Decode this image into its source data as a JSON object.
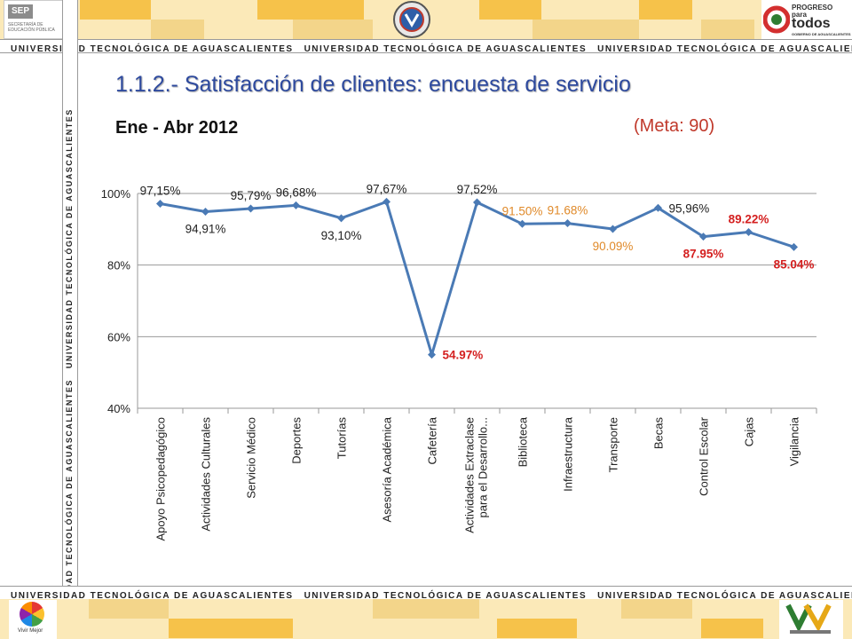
{
  "header": {
    "banner_text": "UNIVERSIDAD TECNOLÓGICA DE AGUASCALIENTES",
    "sep_logo_text": "SEP",
    "sep_logo_subtext": "SECRETARÍA DE EDUCACIÓN PÚBLICA",
    "right_logo_line1": "PROGRESO",
    "right_logo_line2": "para",
    "right_logo_line3": "todos",
    "right_logo_caption": "GOBIERNO DE AGUASCALIENTES"
  },
  "footer": {
    "banner_text": "UNIVERSIDAD TECNOLÓGICA DE AGUASCALIENTES",
    "left_logo_text": "Vivir Mejor"
  },
  "side_text": "UNIVERSIDAD TECNOLÓGICA DE AGUASCALIENTES",
  "slide": {
    "title": "1.1.2.- Satisfacción de clientes: encuesta de servicio",
    "period": "Ene - Abr 2012",
    "goal": "(Meta: 90)"
  },
  "colors": {
    "line": "#4a7ab5",
    "label_normal": "#222222",
    "label_orange": "#e08a2a",
    "label_red": "#d42020",
    "title": "#2e4a9e"
  },
  "chart_data": {
    "type": "line",
    "categories": [
      "Apoyo Psicopedagógico",
      "Actividades Culturales",
      "Servicio Médico",
      "Deportes",
      "Tutorías",
      "Asesoría Académica",
      "Cafetería",
      "Actividades Extraclase para el Desarrollo...",
      "Biblioteca",
      "Infraestructura",
      "Transporte",
      "Becas",
      "Control Escolar",
      "Cajas",
      "Vigilancia"
    ],
    "category_lines": [
      [
        "Apoyo Psicopedagógico"
      ],
      [
        "Actividades Culturales"
      ],
      [
        "Servicio Médico"
      ],
      [
        "Deportes"
      ],
      [
        "Tutorías"
      ],
      [
        "Asesoría Académica"
      ],
      [
        "Cafetería"
      ],
      [
        "Actividades Extraclase",
        "para el Desarrollo..."
      ],
      [
        "Biblioteca"
      ],
      [
        "Infraestructura"
      ],
      [
        "Transporte"
      ],
      [
        "Becas"
      ],
      [
        "Control Escolar"
      ],
      [
        "Cajas"
      ],
      [
        "Vigilancia"
      ]
    ],
    "values": [
      97.15,
      94.91,
      95.79,
      96.68,
      93.1,
      97.67,
      54.97,
      97.52,
      91.5,
      91.68,
      90.09,
      95.96,
      87.95,
      89.22,
      85.04
    ],
    "data_labels": [
      "97,15%",
      "94,91%",
      "95,79%",
      "96,68%",
      "93,10%",
      "97,67%",
      "54.97%",
      "97,52%",
      "91.50%",
      "91.68%",
      "90.09%",
      "95,96%",
      "87.95%",
      "89.22%",
      "85.04%"
    ],
    "label_styles": [
      "normal",
      "normal",
      "normal",
      "normal",
      "normal",
      "normal",
      "red",
      "normal",
      "orange",
      "orange",
      "orange",
      "normal",
      "red",
      "red",
      "red"
    ],
    "label_positions": [
      "above",
      "below",
      "above",
      "above",
      "below",
      "above",
      "right",
      "above",
      "above",
      "above",
      "below",
      "right",
      "below",
      "above",
      "below"
    ],
    "ylim": [
      40,
      100
    ],
    "yticks": [
      "40%",
      "60%",
      "80%",
      "100%"
    ],
    "ytick_values": [
      40,
      60,
      80,
      100
    ],
    "grid": "horizontal"
  }
}
